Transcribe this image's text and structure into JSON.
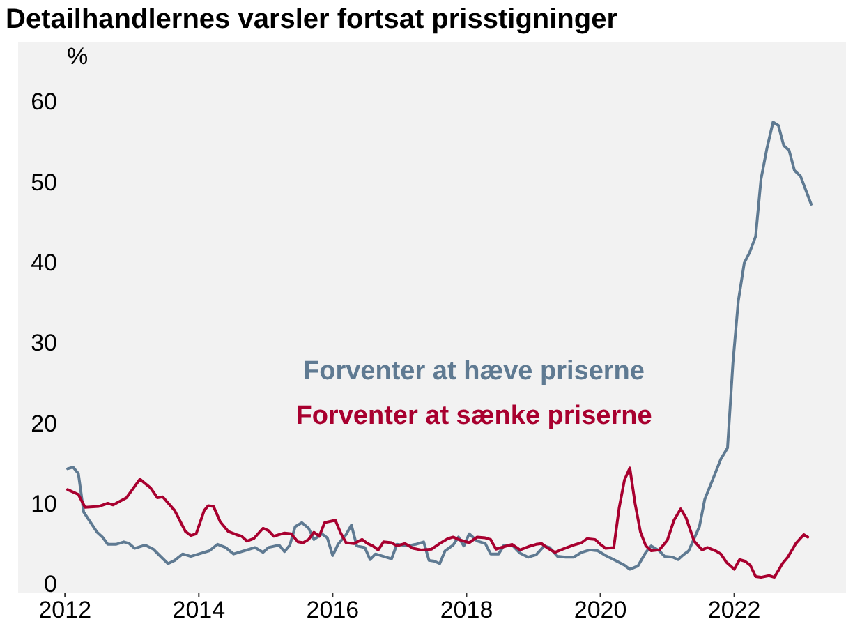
{
  "chart_data": {
    "type": "line",
    "title": "Detailhandlernes varsler fortsat prisstigninger",
    "ylabel": "%",
    "xlim": [
      2011.3,
      2023.67
    ],
    "xticks": [
      2012,
      2014,
      2016,
      2018,
      2020,
      2022
    ],
    "ylim": [
      -1,
      67.5
    ],
    "yticks": [
      0,
      10,
      20,
      30,
      40,
      50,
      60
    ],
    "grid": false,
    "series": [
      {
        "name": "Forventer at hæve priserne",
        "color": "#5f7a92",
        "x": [
          2012.04,
          2012.12,
          2012.2,
          2012.28,
          2012.36,
          2012.48,
          2012.56,
          2012.64,
          2012.76,
          2012.88,
          2012.96,
          2013.04,
          2013.2,
          2013.32,
          2013.44,
          2013.54,
          2013.64,
          2013.76,
          2013.88,
          2014.0,
          2014.16,
          2014.28,
          2014.4,
          2014.52,
          2014.68,
          2014.84,
          2014.96,
          2015.04,
          2015.2,
          2015.28,
          2015.36,
          2015.44,
          2015.54,
          2015.64,
          2015.72,
          2015.84,
          2015.92,
          2016.0,
          2016.08,
          2016.2,
          2016.28,
          2016.36,
          2016.48,
          2016.56,
          2016.64,
          2016.76,
          2016.88,
          2016.96,
          2017.12,
          2017.24,
          2017.36,
          2017.44,
          2017.52,
          2017.6,
          2017.68,
          2017.8,
          2017.88,
          2017.96,
          2018.04,
          2018.16,
          2018.28,
          2018.36,
          2018.48,
          2018.56,
          2018.68,
          2018.8,
          2018.92,
          2019.04,
          2019.16,
          2019.24,
          2019.36,
          2019.48,
          2019.6,
          2019.72,
          2019.84,
          2019.96,
          2020.08,
          2020.2,
          2020.36,
          2020.44,
          2020.56,
          2020.68,
          2020.76,
          2020.88,
          2020.96,
          2021.08,
          2021.16,
          2021.24,
          2021.32,
          2021.48,
          2021.56,
          2021.68,
          2021.8,
          2021.9,
          2021.98,
          2022.06,
          2022.15,
          2022.23,
          2022.32,
          2022.4,
          2022.49,
          2022.58,
          2022.66,
          2022.74,
          2022.82,
          2022.9,
          2022.99,
          2023.15
        ],
        "values": [
          14.4,
          14.6,
          13.8,
          9.0,
          8.0,
          6.5,
          5.9,
          5.0,
          5.0,
          5.3,
          5.1,
          4.5,
          4.9,
          4.4,
          3.4,
          2.6,
          3.0,
          3.8,
          3.5,
          3.8,
          4.2,
          5.0,
          4.6,
          3.8,
          4.2,
          4.6,
          4.0,
          4.6,
          4.9,
          4.1,
          4.9,
          7.2,
          7.7,
          7.0,
          5.6,
          6.3,
          5.8,
          3.6,
          5.0,
          6.2,
          7.4,
          4.8,
          4.6,
          3.1,
          3.8,
          3.5,
          3.2,
          5.0,
          4.8,
          5.0,
          5.3,
          3.0,
          2.9,
          2.6,
          4.2,
          4.9,
          5.9,
          4.8,
          6.3,
          5.4,
          5.1,
          3.8,
          3.8,
          4.9,
          4.9,
          3.9,
          3.4,
          3.7,
          4.8,
          4.6,
          3.5,
          3.4,
          3.4,
          4.0,
          4.3,
          4.2,
          3.6,
          3.1,
          2.4,
          1.9,
          2.3,
          4.0,
          4.8,
          4.2,
          3.5,
          3.4,
          3.1,
          3.7,
          4.2,
          7.2,
          10.6,
          13.1,
          15.6,
          17.0,
          27.5,
          35.2,
          40.0,
          41.3,
          43.3,
          50.4,
          54.3,
          57.5,
          57.1,
          54.6,
          54.0,
          51.5,
          50.8,
          47.3
        ]
      },
      {
        "name": "Forventer at sænke priserne",
        "color": "#a8002f",
        "x": [
          2012.04,
          2012.2,
          2012.3,
          2012.5,
          2012.64,
          2012.72,
          2012.92,
          2013.12,
          2013.28,
          2013.38,
          2013.46,
          2013.64,
          2013.8,
          2013.88,
          2013.96,
          2014.08,
          2014.14,
          2014.22,
          2014.32,
          2014.44,
          2014.56,
          2014.64,
          2014.72,
          2014.82,
          2014.96,
          2015.04,
          2015.12,
          2015.28,
          2015.38,
          2015.48,
          2015.56,
          2015.64,
          2015.72,
          2015.8,
          2015.88,
          2016.04,
          2016.12,
          2016.2,
          2016.32,
          2016.44,
          2016.52,
          2016.6,
          2016.68,
          2016.76,
          2016.88,
          2016.96,
          2017.08,
          2017.2,
          2017.32,
          2017.48,
          2017.6,
          2017.72,
          2017.8,
          2017.88,
          2018.04,
          2018.16,
          2018.28,
          2018.36,
          2018.44,
          2018.56,
          2018.68,
          2018.8,
          2018.92,
          2019.04,
          2019.12,
          2019.2,
          2019.32,
          2019.44,
          2019.6,
          2019.72,
          2019.8,
          2019.92,
          2020.0,
          2020.08,
          2020.2,
          2020.28,
          2020.36,
          2020.44,
          2020.52,
          2020.6,
          2020.68,
          2020.76,
          2020.88,
          2021.0,
          2021.1,
          2021.2,
          2021.28,
          2021.4,
          2021.52,
          2021.6,
          2021.72,
          2021.8,
          2021.88,
          2022.0,
          2022.08,
          2022.16,
          2022.24,
          2022.32,
          2022.4,
          2022.52,
          2022.6,
          2022.72,
          2022.8,
          2022.92,
          2023.04,
          2023.1
        ],
        "values": [
          11.8,
          11.2,
          9.6,
          9.7,
          10.1,
          9.9,
          10.8,
          13.1,
          12.0,
          10.8,
          10.9,
          9.2,
          6.6,
          6.1,
          6.3,
          9.2,
          9.8,
          9.7,
          7.8,
          6.6,
          6.2,
          6.0,
          5.4,
          5.7,
          7.0,
          6.7,
          6.0,
          6.4,
          6.3,
          5.3,
          5.2,
          5.6,
          6.5,
          6.0,
          7.7,
          8.0,
          6.4,
          5.2,
          5.1,
          5.6,
          5.1,
          4.8,
          4.3,
          5.3,
          5.2,
          4.8,
          5.1,
          4.5,
          4.3,
          4.4,
          5.1,
          5.7,
          5.9,
          5.6,
          5.2,
          5.9,
          5.8,
          5.6,
          4.4,
          4.7,
          5.0,
          4.3,
          4.7,
          5.0,
          5.1,
          4.6,
          4.0,
          4.4,
          4.9,
          5.2,
          5.7,
          5.6,
          5.0,
          4.5,
          4.6,
          9.5,
          13.0,
          14.5,
          10.0,
          6.5,
          4.8,
          4.2,
          4.3,
          5.5,
          8.0,
          9.4,
          8.3,
          5.4,
          4.3,
          4.6,
          4.2,
          3.8,
          2.8,
          1.9,
          3.1,
          2.9,
          2.4,
          1.0,
          0.9,
          1.1,
          0.9,
          2.6,
          3.4,
          5.1,
          6.2,
          5.9
        ]
      }
    ]
  }
}
